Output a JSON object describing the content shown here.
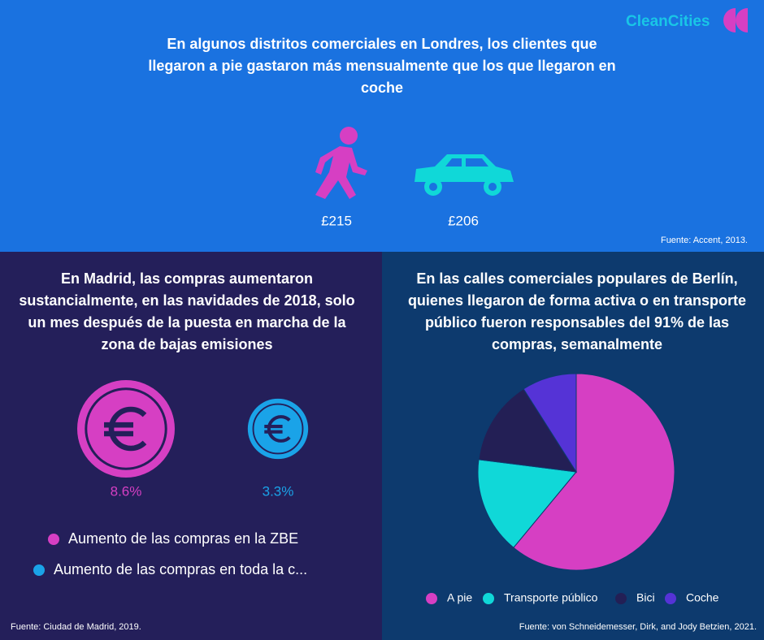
{
  "logo": "CleanCities",
  "london": {
    "title": "En algunos distritos comerciales en Londres, los clientes que llegaron a pie gastaron más mensualmente que los que llegaron en coche",
    "items": [
      {
        "value": "£215"
      },
      {
        "value": "£206"
      }
    ],
    "source": "Fuente: Accent, 2013."
  },
  "chart_data": [
    {
      "type": "bubble",
      "title": "En Madrid, las compras aumentaron sustancialmente, en las navidades de 2018, solo un mes después de la puesta en marcha de la zona de bajas emisiones",
      "series": [
        {
          "name": "Aumento de las compras en la ZBE",
          "color": "#d63fc3",
          "values": [
            8.6
          ],
          "value_labels": [
            "8.6%"
          ]
        },
        {
          "name": "Aumento de las compras en toda la c...",
          "color": "#1aa3e8",
          "values": [
            3.3
          ],
          "value_labels": [
            "3.3%"
          ]
        }
      ],
      "source": "Fuente: Ciudad de  Madrid, 2019."
    },
    {
      "type": "pie",
      "title": "En las calles comerciales populares de Berlín, quienes llegaron de forma activa o en transporte público fueron responsables del 91% de las compras, semanalmente",
      "categories": [
        "A pie",
        "Transporte público",
        "Bici",
        "Coche"
      ],
      "values": [
        61,
        16,
        14,
        9
      ],
      "colors": [
        "#d63fc3",
        "#10d8d8",
        "#231f55",
        "#5533d6"
      ],
      "source": "Fuente: von Schneidemesser, Dirk, and Jody Betzien, 2021."
    }
  ]
}
